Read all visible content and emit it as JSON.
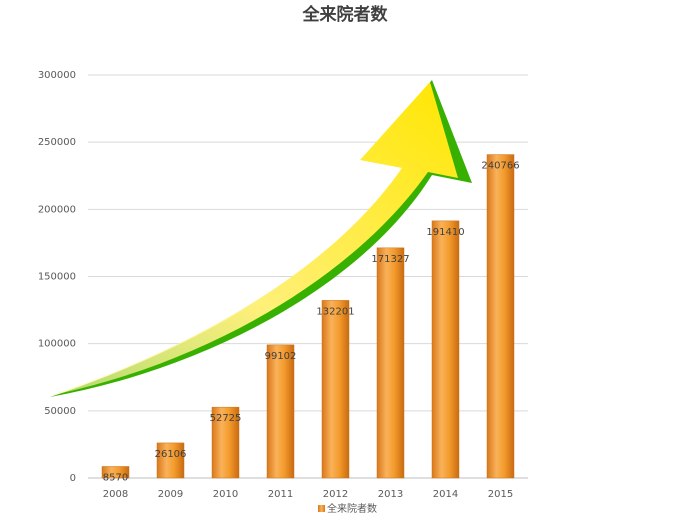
{
  "chart_data": {
    "type": "bar",
    "title": "全来院者数",
    "categories": [
      "2008",
      "2009",
      "2010",
      "2011",
      "2012",
      "2013",
      "2014",
      "2015"
    ],
    "series": [
      {
        "name": "全来院者数",
        "values": [
          8570,
          26106,
          52725,
          99102,
          132201,
          171327,
          191410,
          240766
        ]
      }
    ],
    "data_labels": [
      "8570",
      "26106",
      "52725",
      "99102",
      "132201",
      "171327",
      "191410",
      "240766"
    ],
    "y_ticks": [
      "0",
      "50000",
      "100000",
      "150000",
      "200000",
      "250000",
      "300000"
    ],
    "ylim": [
      0,
      300000
    ],
    "xlabel": "",
    "ylabel": "",
    "grid": true,
    "legend_position": "bottom",
    "colors": {
      "bar_light": "#f9b25a",
      "bar_mid": "#f39a2b",
      "bar_dark": "#d9771a",
      "arrow_yellow": "#ffe600",
      "arrow_green": "#38b000"
    },
    "decoration": "yellow-green-growth-arrow"
  }
}
